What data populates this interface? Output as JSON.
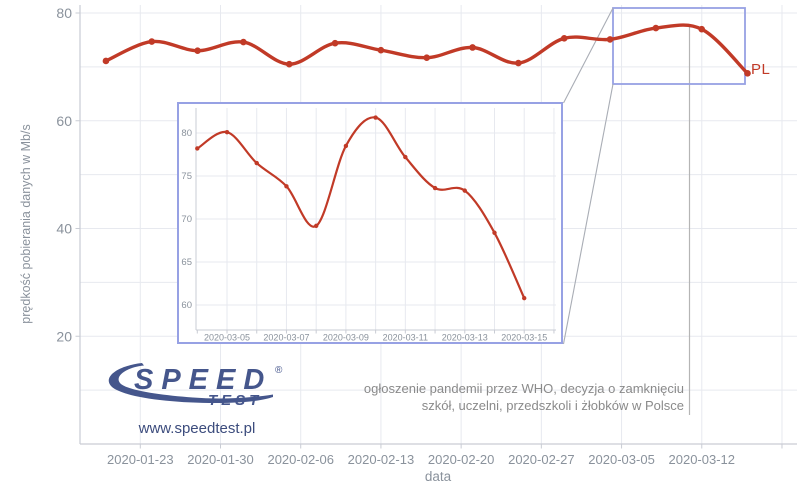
{
  "main_chart": {
    "series_label": "PL",
    "xlabel": "data",
    "ylabel": "prędkość pobierania danych w Mb/s",
    "x_tick_labels": [
      "2020-01-23",
      "2020-01-30",
      "2020-02-06",
      "2020-02-13",
      "2020-02-20",
      "2020-02-27",
      "2020-03-05",
      "2020-03-12"
    ],
    "y_tick_labels": [
      "20",
      "40",
      "60",
      "80"
    ]
  },
  "inset_chart": {
    "x_tick_labels": [
      "2020-03-05",
      "2020-03-07",
      "2020-03-09",
      "2020-03-11",
      "2020-03-13",
      "2020-03-15"
    ],
    "y_tick_labels": [
      "60",
      "65",
      "70",
      "75",
      "80"
    ]
  },
  "chart_data": [
    {
      "type": "line",
      "title": "",
      "xlabel": "data",
      "ylabel": "prędkość pobierania danych w Mb/s",
      "ylim": [
        0,
        81.5
      ],
      "grid": true,
      "x_tick_labels": [
        "2020-01-23",
        "2020-01-30",
        "2020-02-06",
        "2020-02-13",
        "2020-02-20",
        "2020-02-27",
        "2020-03-05",
        "2020-03-12"
      ],
      "y_tick_labels": [
        "20",
        "40",
        "60",
        "80"
      ],
      "series": [
        {
          "name": "PL",
          "x": [
            "2020-01-20",
            "2020-01-24",
            "2020-01-28",
            "2020-02-01",
            "2020-02-05",
            "2020-02-09",
            "2020-02-13",
            "2020-02-17",
            "2020-02-21",
            "2020-02-25",
            "2020-02-29",
            "2020-03-04",
            "2020-03-08",
            "2020-03-12",
            "2020-03-16"
          ],
          "values": [
            71.1,
            74.7,
            73.0,
            74.6,
            70.5,
            74.4,
            73.1,
            71.7,
            73.6,
            70.7,
            75.3,
            75.1,
            77.2,
            77.0,
            68.8
          ]
        }
      ]
    },
    {
      "type": "line",
      "title": "",
      "note": "inset zoom of highlighted region",
      "ylim": [
        57,
        83
      ],
      "grid": true,
      "x_tick_labels": [
        "2020-03-05",
        "2020-03-07",
        "2020-03-09",
        "2020-03-11",
        "2020-03-13",
        "2020-03-15"
      ],
      "y_tick_labels": [
        "60",
        "65",
        "70",
        "75",
        "80"
      ],
      "series": [
        {
          "name": "PL",
          "x": [
            "2020-03-04",
            "2020-03-05",
            "2020-03-06",
            "2020-03-07",
            "2020-03-08",
            "2020-03-09",
            "2020-03-10",
            "2020-03-11",
            "2020-03-12",
            "2020-03-13",
            "2020-03-14",
            "2020-03-15"
          ],
          "values": [
            78.2,
            80.1,
            76.5,
            73.8,
            69.2,
            78.5,
            81.8,
            77.2,
            73.6,
            73.3,
            68.4,
            60.8
          ]
        }
      ]
    }
  ],
  "annotation": {
    "line1": "ogłoszenie pandemii przez WHO, decyzja o zamknięciu",
    "line2": "szkół, uczelni, przedszkoli i żłobków w Polsce"
  },
  "logo": {
    "word1": "SPEED",
    "word2": "TEST",
    "registered": "®",
    "url": "www.speedtest.pl"
  },
  "colors": {
    "line": "#c13a27",
    "highlight_box": "#97a1e4",
    "grid": "#e7e9ef",
    "axis": "#c9ccd4",
    "tick_text": "#8a929c",
    "connector": "#a9adb5",
    "annotation_line": "#b5b5b5",
    "annotation_text": "#8a8a8a",
    "logo_navy": "#45568c"
  }
}
